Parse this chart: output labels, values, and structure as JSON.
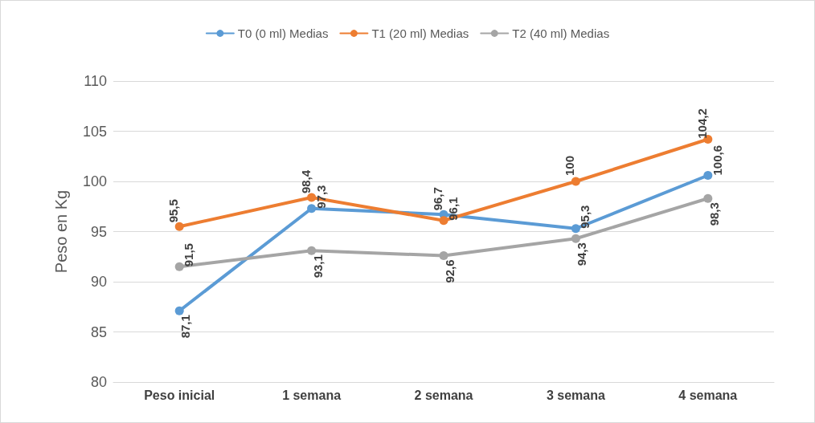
{
  "chart_data": {
    "type": "line",
    "ylabel": "Peso en Kg",
    "categories": [
      "Peso inicial",
      "1 semana",
      "2 semana",
      "3 semana",
      "4 semana"
    ],
    "series": [
      {
        "name": "T0 (0 ml) Medias",
        "color": "#5b9bd5",
        "values": [
          87.1,
          97.3,
          96.7,
          95.3,
          100.6
        ],
        "value_labels": [
          "87,1",
          "97,3",
          "96,7",
          "95,3",
          "100,6"
        ]
      },
      {
        "name": "T1 (20 ml) Medias",
        "color": "#ed7d31",
        "values": [
          95.5,
          98.4,
          96.1,
          100,
          104.2
        ],
        "value_labels": [
          "95,5",
          "98,4",
          "96,1",
          "100",
          "104,2"
        ]
      },
      {
        "name": "T2 (40 ml) Medias",
        "color": "#a5a5a5",
        "values": [
          91.5,
          93.1,
          92.6,
          94.3,
          98.3
        ],
        "value_labels": [
          "91,5",
          "93,1",
          "92,6",
          "94,3",
          "98,3"
        ]
      }
    ],
    "ylim": [
      80,
      110
    ],
    "yticks": [
      80,
      85,
      90,
      95,
      100,
      105,
      110
    ],
    "grid": "y",
    "legend": "top",
    "marker": "circle",
    "line_style": "solid"
  }
}
